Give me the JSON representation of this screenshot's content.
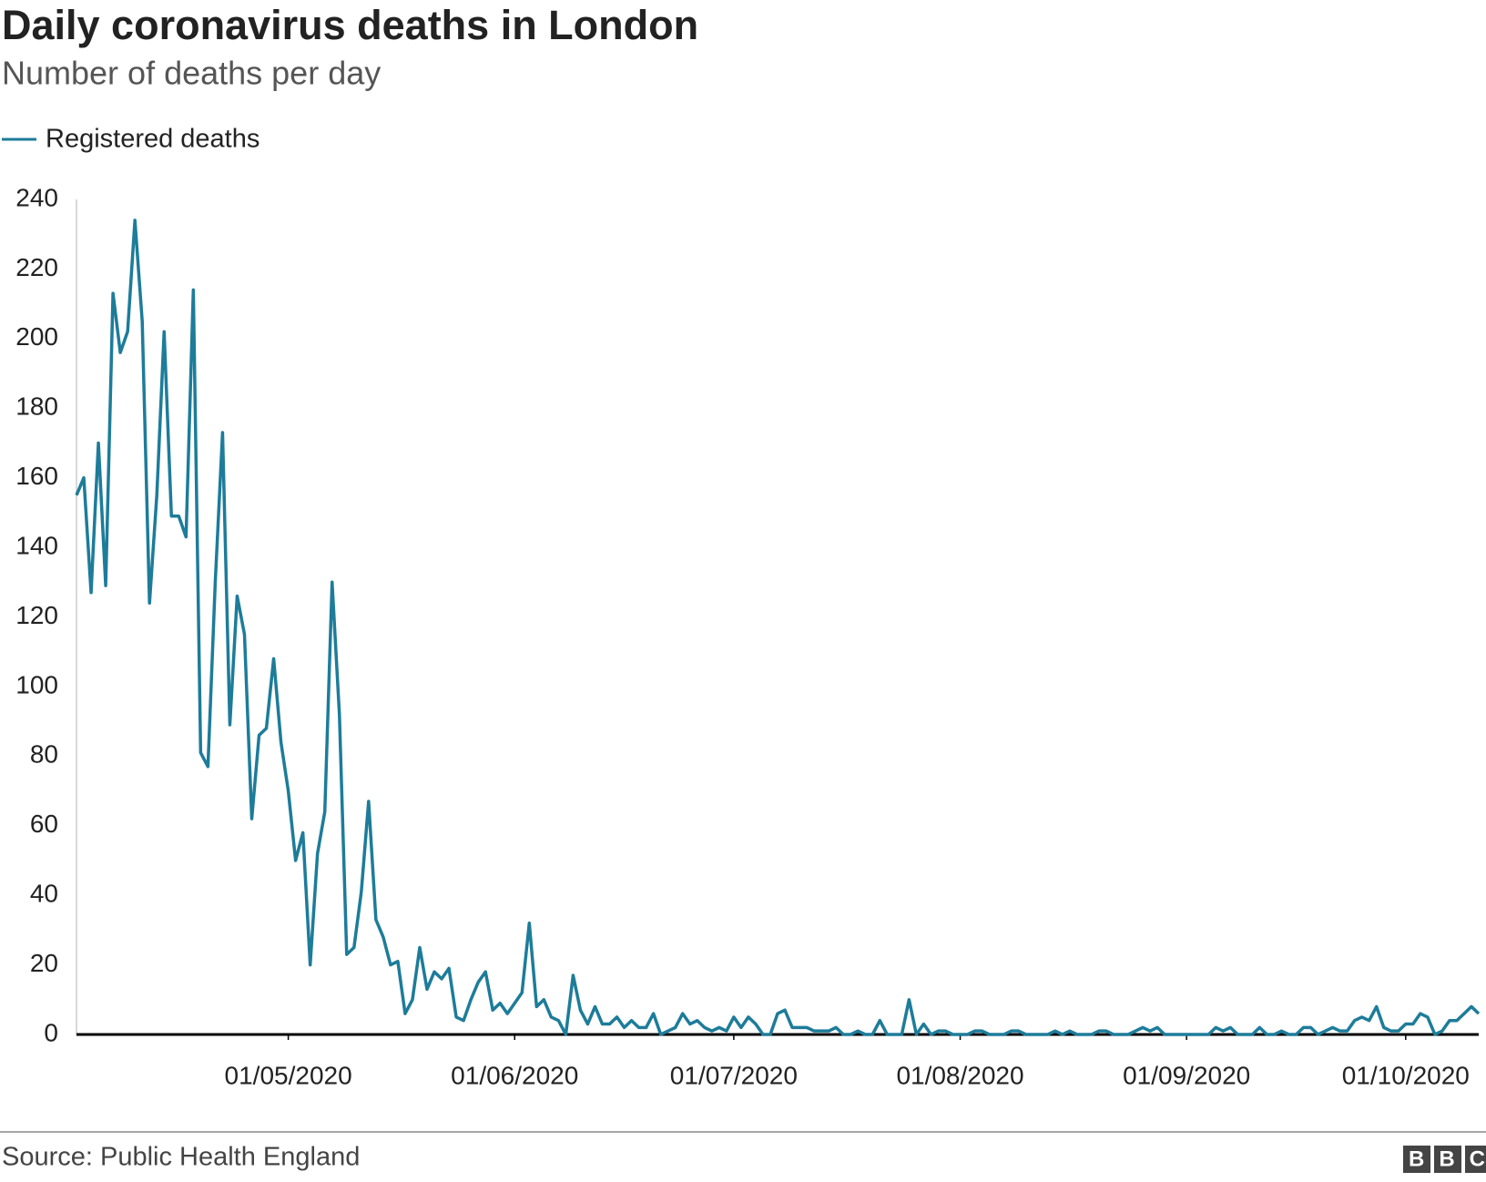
{
  "chart_data": {
    "type": "line",
    "title": "Daily coronavirus deaths in London",
    "subtitle": "Number of deaths per day",
    "source": "Source: Public Health England",
    "x": [
      "02/04/2020",
      "03/04/2020",
      "04/04/2020",
      "05/04/2020",
      "06/04/2020",
      "07/04/2020",
      "08/04/2020",
      "09/04/2020",
      "10/04/2020",
      "11/04/2020",
      "12/04/2020",
      "13/04/2020",
      "14/04/2020",
      "15/04/2020",
      "16/04/2020",
      "17/04/2020",
      "18/04/2020",
      "19/04/2020",
      "20/04/2020",
      "21/04/2020",
      "22/04/2020",
      "23/04/2020",
      "24/04/2020",
      "25/04/2020",
      "26/04/2020",
      "27/04/2020",
      "28/04/2020",
      "29/04/2020",
      "30/04/2020",
      "01/05/2020",
      "02/05/2020",
      "03/05/2020",
      "04/05/2020",
      "05/05/2020",
      "06/05/2020",
      "07/05/2020",
      "08/05/2020",
      "09/05/2020",
      "10/05/2020",
      "11/05/2020",
      "12/05/2020",
      "13/05/2020",
      "14/05/2020",
      "15/05/2020",
      "16/05/2020",
      "17/05/2020",
      "18/05/2020",
      "19/05/2020",
      "20/05/2020",
      "21/05/2020",
      "22/05/2020",
      "23/05/2020",
      "24/05/2020",
      "25/05/2020",
      "26/05/2020",
      "27/05/2020",
      "28/05/2020",
      "29/05/2020",
      "30/05/2020",
      "31/05/2020",
      "01/06/2020",
      "02/06/2020",
      "03/06/2020",
      "04/06/2020",
      "05/06/2020",
      "06/06/2020",
      "07/06/2020",
      "08/06/2020",
      "09/06/2020",
      "10/06/2020",
      "11/06/2020",
      "12/06/2020",
      "13/06/2020",
      "14/06/2020",
      "15/06/2020",
      "16/06/2020",
      "17/06/2020",
      "18/06/2020",
      "19/06/2020",
      "20/06/2020",
      "21/06/2020",
      "22/06/2020",
      "23/06/2020",
      "24/06/2020",
      "25/06/2020",
      "26/06/2020",
      "27/06/2020",
      "28/06/2020",
      "29/06/2020",
      "30/06/2020",
      "01/07/2020",
      "02/07/2020",
      "03/07/2020",
      "04/07/2020",
      "05/07/2020",
      "06/07/2020",
      "07/07/2020",
      "08/07/2020",
      "09/07/2020",
      "10/07/2020",
      "11/07/2020",
      "12/07/2020",
      "13/07/2020",
      "14/07/2020",
      "15/07/2020",
      "16/07/2020",
      "17/07/2020",
      "18/07/2020",
      "19/07/2020",
      "20/07/2020",
      "21/07/2020",
      "22/07/2020",
      "23/07/2020",
      "24/07/2020",
      "25/07/2020",
      "26/07/2020",
      "27/07/2020",
      "28/07/2020",
      "29/07/2020",
      "30/07/2020",
      "31/07/2020",
      "01/08/2020",
      "02/08/2020",
      "03/08/2020",
      "04/08/2020",
      "05/08/2020",
      "06/08/2020",
      "07/08/2020",
      "08/08/2020",
      "09/08/2020",
      "10/08/2020",
      "11/08/2020",
      "12/08/2020",
      "13/08/2020",
      "14/08/2020",
      "15/08/2020",
      "16/08/2020",
      "17/08/2020",
      "18/08/2020",
      "19/08/2020",
      "20/08/2020",
      "21/08/2020",
      "22/08/2020",
      "23/08/2020",
      "24/08/2020",
      "25/08/2020",
      "26/08/2020",
      "27/08/2020",
      "28/08/2020",
      "29/08/2020",
      "30/08/2020",
      "31/08/2020",
      "01/09/2020",
      "02/09/2020",
      "03/09/2020",
      "04/09/2020",
      "05/09/2020",
      "06/09/2020",
      "07/09/2020",
      "08/09/2020",
      "09/09/2020",
      "10/09/2020",
      "11/09/2020",
      "12/09/2020",
      "13/09/2020",
      "14/09/2020",
      "15/09/2020",
      "16/09/2020",
      "17/09/2020",
      "18/09/2020",
      "19/09/2020",
      "20/09/2020",
      "21/09/2020",
      "22/09/2020",
      "23/09/2020",
      "24/09/2020",
      "25/09/2020",
      "26/09/2020",
      "27/09/2020",
      "28/09/2020",
      "29/09/2020",
      "30/09/2020",
      "01/10/2020",
      "02/10/2020",
      "03/10/2020",
      "04/10/2020",
      "05/10/2020",
      "06/10/2020",
      "07/10/2020",
      "08/10/2020",
      "09/10/2020",
      "10/10/2020",
      "11/10/2020"
    ],
    "series": [
      {
        "name": "Registered deaths",
        "color": "#1d7c9a",
        "values": [
          155,
          160,
          127,
          170,
          129,
          213,
          196,
          202,
          234,
          205,
          124,
          155,
          202,
          149,
          149,
          143,
          214,
          81,
          77,
          130,
          173,
          89,
          126,
          115,
          62,
          86,
          88,
          108,
          84,
          70,
          50,
          58,
          20,
          52,
          64,
          130,
          92,
          23,
          25,
          41,
          67,
          33,
          28,
          20,
          21,
          6,
          10,
          25,
          13,
          18,
          16,
          19,
          5,
          4,
          10,
          15,
          18,
          7,
          9,
          6,
          9,
          12,
          32,
          8,
          10,
          5,
          4,
          0,
          17,
          7,
          3,
          8,
          3,
          3,
          5,
          2,
          4,
          2,
          2,
          6,
          0,
          1,
          2,
          6,
          3,
          4,
          2,
          1,
          2,
          1,
          5,
          2,
          5,
          3,
          0,
          0,
          6,
          7,
          2,
          2,
          2,
          1,
          1,
          1,
          2,
          0,
          0,
          1,
          0,
          0,
          4,
          0,
          0,
          0,
          10,
          0,
          3,
          0,
          1,
          1,
          0,
          0,
          0,
          1,
          1,
          0,
          0,
          0,
          1,
          1,
          0,
          0,
          0,
          0,
          1,
          0,
          1,
          0,
          0,
          0,
          1,
          1,
          0,
          0,
          0,
          1,
          2,
          1,
          2,
          0,
          0,
          0,
          0,
          0,
          0,
          0,
          2,
          1,
          2,
          0,
          0,
          0,
          2,
          0,
          0,
          1,
          0,
          0,
          2,
          2,
          0,
          1,
          2,
          1,
          1,
          4,
          5,
          4,
          8,
          2,
          1,
          1,
          3,
          3,
          6,
          5,
          0,
          1,
          4,
          4,
          6,
          8,
          6
        ]
      }
    ],
    "xlim": [
      "02/04/2020",
      "11/10/2020"
    ],
    "xticks": [
      "01/05/2020",
      "01/06/2020",
      "01/07/2020",
      "01/08/2020",
      "01/09/2020",
      "01/10/2020"
    ],
    "ylim": [
      0,
      240
    ],
    "yticks": [
      0,
      20,
      40,
      60,
      80,
      100,
      120,
      140,
      160,
      180,
      200,
      220,
      240
    ],
    "grid": false
  },
  "logo": "BBC"
}
